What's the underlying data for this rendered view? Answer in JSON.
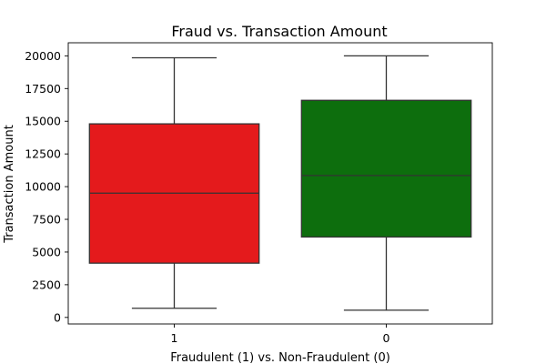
{
  "chart_data": {
    "type": "box",
    "title": "Fraud vs. Transaction Amount",
    "xlabel": "Fraudulent (1) vs. Non-Fraudulent (0)",
    "ylabel": "Transaction Amount",
    "ylim": [
      -500,
      21000
    ],
    "yticks": [
      0,
      2500,
      5000,
      7500,
      10000,
      12500,
      15000,
      17500,
      20000
    ],
    "categories": [
      "1",
      "0"
    ],
    "boxes": [
      {
        "category": "1",
        "min": 700,
        "q1": 4150,
        "median": 9500,
        "q3": 14800,
        "max": 19850,
        "color": "#e41a1c"
      },
      {
        "category": "0",
        "min": 550,
        "q1": 6150,
        "median": 10850,
        "q3": 16600,
        "max": 20000,
        "color": "#0d6e0d"
      }
    ],
    "grid": false,
    "legend": "none"
  }
}
